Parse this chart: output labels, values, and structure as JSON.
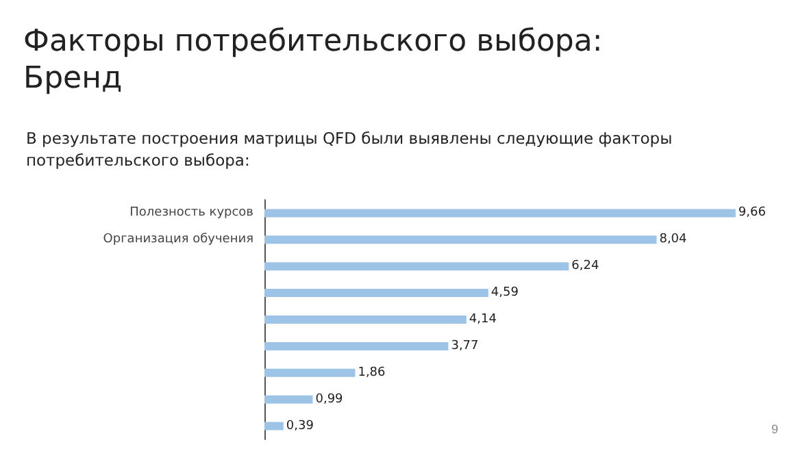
{
  "chart_data": {
    "type": "bar",
    "orientation": "horizontal",
    "title": "Факторы потребительского выбора:\nБренд",
    "subtitle": "В результате построения матрицы QFD были выявлены следующие факторы\nпотребительского выбора:",
    "categories": [
      "Полезность курсов",
      "Организация обучения",
      null,
      null,
      null,
      null,
      null,
      null,
      null
    ],
    "values": [
      9.66,
      8.04,
      6.24,
      4.59,
      4.14,
      3.77,
      1.86,
      0.99,
      0.39
    ],
    "value_labels": [
      "9,66",
      "8,04",
      "6,24",
      "4,59",
      "4,14",
      "3,77",
      "1,86",
      "0,99",
      "0,39"
    ],
    "color": "#9dc3e6",
    "grid": false,
    "tick_labels": "y",
    "annotations": [
      "9"
    ]
  }
}
